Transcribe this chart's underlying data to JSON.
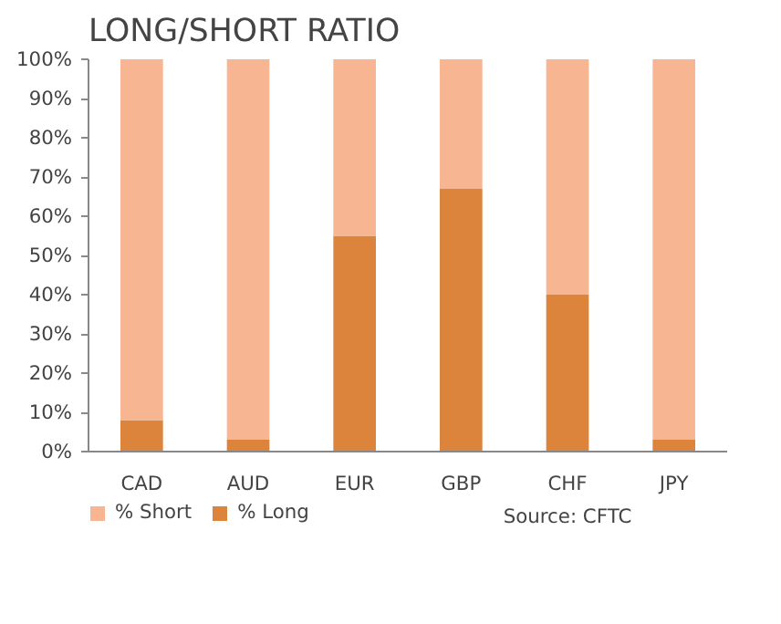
{
  "chart_data": {
    "type": "bar",
    "title": "LONG/SHORT RATIO",
    "stacked": true,
    "categories": [
      "CAD",
      "AUD",
      "EUR",
      "GBP",
      "CHF",
      "JPY"
    ],
    "series": [
      {
        "name": "% Long",
        "color": "#dc843c",
        "values": [
          8,
          3,
          55,
          67,
          40,
          3
        ]
      },
      {
        "name": "% Short",
        "color": "#f8b592",
        "values": [
          92,
          97,
          45,
          33,
          60,
          97
        ]
      }
    ],
    "ylim": [
      0,
      100
    ],
    "yticks": [
      {
        "value": 0,
        "label": "0%"
      },
      {
        "value": 10,
        "label": "10%"
      },
      {
        "value": 20,
        "label": "20%"
      },
      {
        "value": 30,
        "label": "30%"
      },
      {
        "value": 40,
        "label": "40%"
      },
      {
        "value": 50,
        "label": "50%"
      },
      {
        "value": 60,
        "label": "60%"
      },
      {
        "value": 70,
        "label": "70%"
      },
      {
        "value": 80,
        "label": "80%"
      },
      {
        "value": 90,
        "label": "90%"
      },
      {
        "value": 100,
        "label": "100%"
      }
    ],
    "legend": "bottom",
    "grid": false,
    "annotations": [
      "Source: CFTC"
    ]
  }
}
